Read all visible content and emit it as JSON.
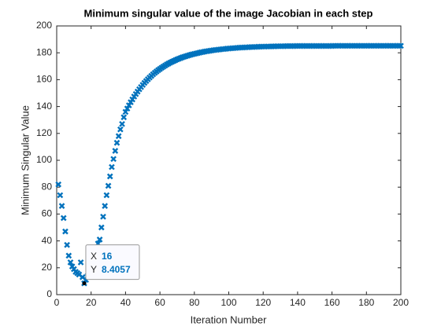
{
  "chart_data": {
    "type": "scatter",
    "title": "Minimum singular value of the image Jacobian in each step",
    "xlabel": "Iteration Number",
    "ylabel": "Minimum Singular Value",
    "color": "#0072bd",
    "marker": "x",
    "grid": false,
    "xlim": [
      0,
      200
    ],
    "ylim": [
      0,
      200
    ],
    "xticks": [
      0,
      20,
      40,
      60,
      80,
      100,
      120,
      140,
      160,
      180,
      200
    ],
    "yticks": [
      0,
      20,
      40,
      60,
      80,
      100,
      120,
      140,
      160,
      180,
      200
    ],
    "x": [
      1,
      2,
      3,
      4,
      5,
      6,
      7,
      8,
      9,
      10,
      11,
      12,
      13,
      14,
      15,
      16,
      17,
      18,
      19,
      20,
      21,
      22,
      23,
      24,
      25,
      26,
      27,
      28,
      29,
      30,
      31,
      32,
      33,
      34,
      35,
      36,
      37,
      38,
      39,
      40,
      41,
      42,
      43,
      44,
      45,
      46,
      47,
      48,
      49,
      50,
      51,
      52,
      53,
      54,
      55,
      56,
      57,
      58,
      59,
      60,
      61,
      62,
      63,
      64,
      65,
      66,
      67,
      68,
      69,
      70,
      71,
      72,
      73,
      74,
      75,
      76,
      77,
      78,
      79,
      80,
      81,
      82,
      83,
      84,
      85,
      86,
      87,
      88,
      89,
      90,
      91,
      92,
      93,
      94,
      95,
      96,
      97,
      98,
      99,
      100,
      101,
      102,
      103,
      104,
      105,
      106,
      107,
      108,
      109,
      110,
      111,
      112,
      113,
      114,
      115,
      116,
      117,
      118,
      119,
      120,
      121,
      122,
      123,
      124,
      125,
      126,
      127,
      128,
      129,
      130,
      131,
      132,
      133,
      134,
      135,
      136,
      137,
      138,
      139,
      140,
      141,
      142,
      143,
      144,
      145,
      146,
      147,
      148,
      149,
      150,
      151,
      152,
      153,
      154,
      155,
      156,
      157,
      158,
      159,
      160,
      161,
      162,
      163,
      164,
      165,
      166,
      167,
      168,
      169,
      170,
      171,
      172,
      173,
      174,
      175,
      176,
      177,
      178,
      179,
      180,
      181,
      182,
      183,
      184,
      185,
      186,
      187,
      188,
      189,
      190,
      191,
      192,
      193,
      194,
      195,
      196,
      197,
      198,
      199,
      200
    ],
    "values": [
      82,
      74,
      66,
      57,
      47,
      37,
      29,
      24,
      21,
      19,
      17,
      16,
      15,
      24,
      13,
      8.4057,
      11,
      14,
      18,
      22,
      26,
      30,
      34,
      38,
      41,
      50,
      58,
      66,
      74,
      81,
      88,
      95,
      101,
      107,
      113,
      118,
      123,
      127,
      132,
      136,
      138.5,
      140.9,
      143.2,
      145.3,
      147.4,
      149.3,
      151.1,
      152.9,
      154.5,
      156.1,
      157.6,
      159.0,
      160.3,
      161.6,
      162.8,
      164.0,
      165.1,
      166.1,
      167.1,
      168.0,
      168.9,
      169.7,
      170.5,
      171.3,
      172.0,
      172.7,
      173.3,
      173.9,
      174.5,
      175.1,
      175.6,
      176.1,
      176.6,
      177.0,
      177.4,
      177.8,
      178.2,
      178.6,
      178.9,
      179.2,
      179.5,
      179.8,
      180.1,
      180.4,
      180.6,
      180.9,
      181.1,
      181.3,
      181.5,
      181.7,
      181.9,
      182.1,
      182.2,
      182.4,
      182.5,
      182.7,
      182.8,
      182.9,
      183.1,
      183.2,
      183.3,
      183.4,
      183.5,
      183.6,
      183.7,
      183.8,
      183.9,
      183.9,
      184.0,
      184.1,
      184.1,
      184.2,
      184.3,
      184.3,
      184.4,
      184.4,
      184.5,
      184.5,
      184.6,
      184.6,
      184.6,
      184.7,
      184.7,
      184.7,
      184.8,
      184.8,
      184.8,
      184.9,
      184.9,
      184.9,
      184.9,
      184.9,
      185.0,
      185.0,
      185.0,
      185.0,
      185.0,
      185.0,
      185.1,
      185.1,
      185.1,
      185.1,
      185.1,
      185.1,
      185.1,
      185.1,
      185.1,
      185.1,
      185.1,
      185.1,
      185.1,
      185.1,
      185.1,
      185.1,
      185.1,
      185.1,
      185.1,
      185.1,
      185.1,
      185.1,
      185.2,
      185.2,
      185.2,
      185.2,
      185.2,
      185.2,
      185.2,
      185.2,
      185.2,
      185.2,
      185.2,
      185.2,
      185.2,
      185.2,
      185.2,
      185.2,
      185.2,
      185.2,
      185.2,
      185.2,
      185.2,
      185.2,
      185.2,
      185.2,
      185.2,
      185.2,
      185.2,
      185.2,
      185.2,
      185.2,
      185.2,
      185.2,
      185.2,
      185.2,
      185.2,
      185.2,
      185.2,
      185.2,
      185.2,
      185.2
    ],
    "datatip": {
      "labels": [
        "X",
        "Y"
      ],
      "x": 16,
      "y": 8.4057
    }
  }
}
